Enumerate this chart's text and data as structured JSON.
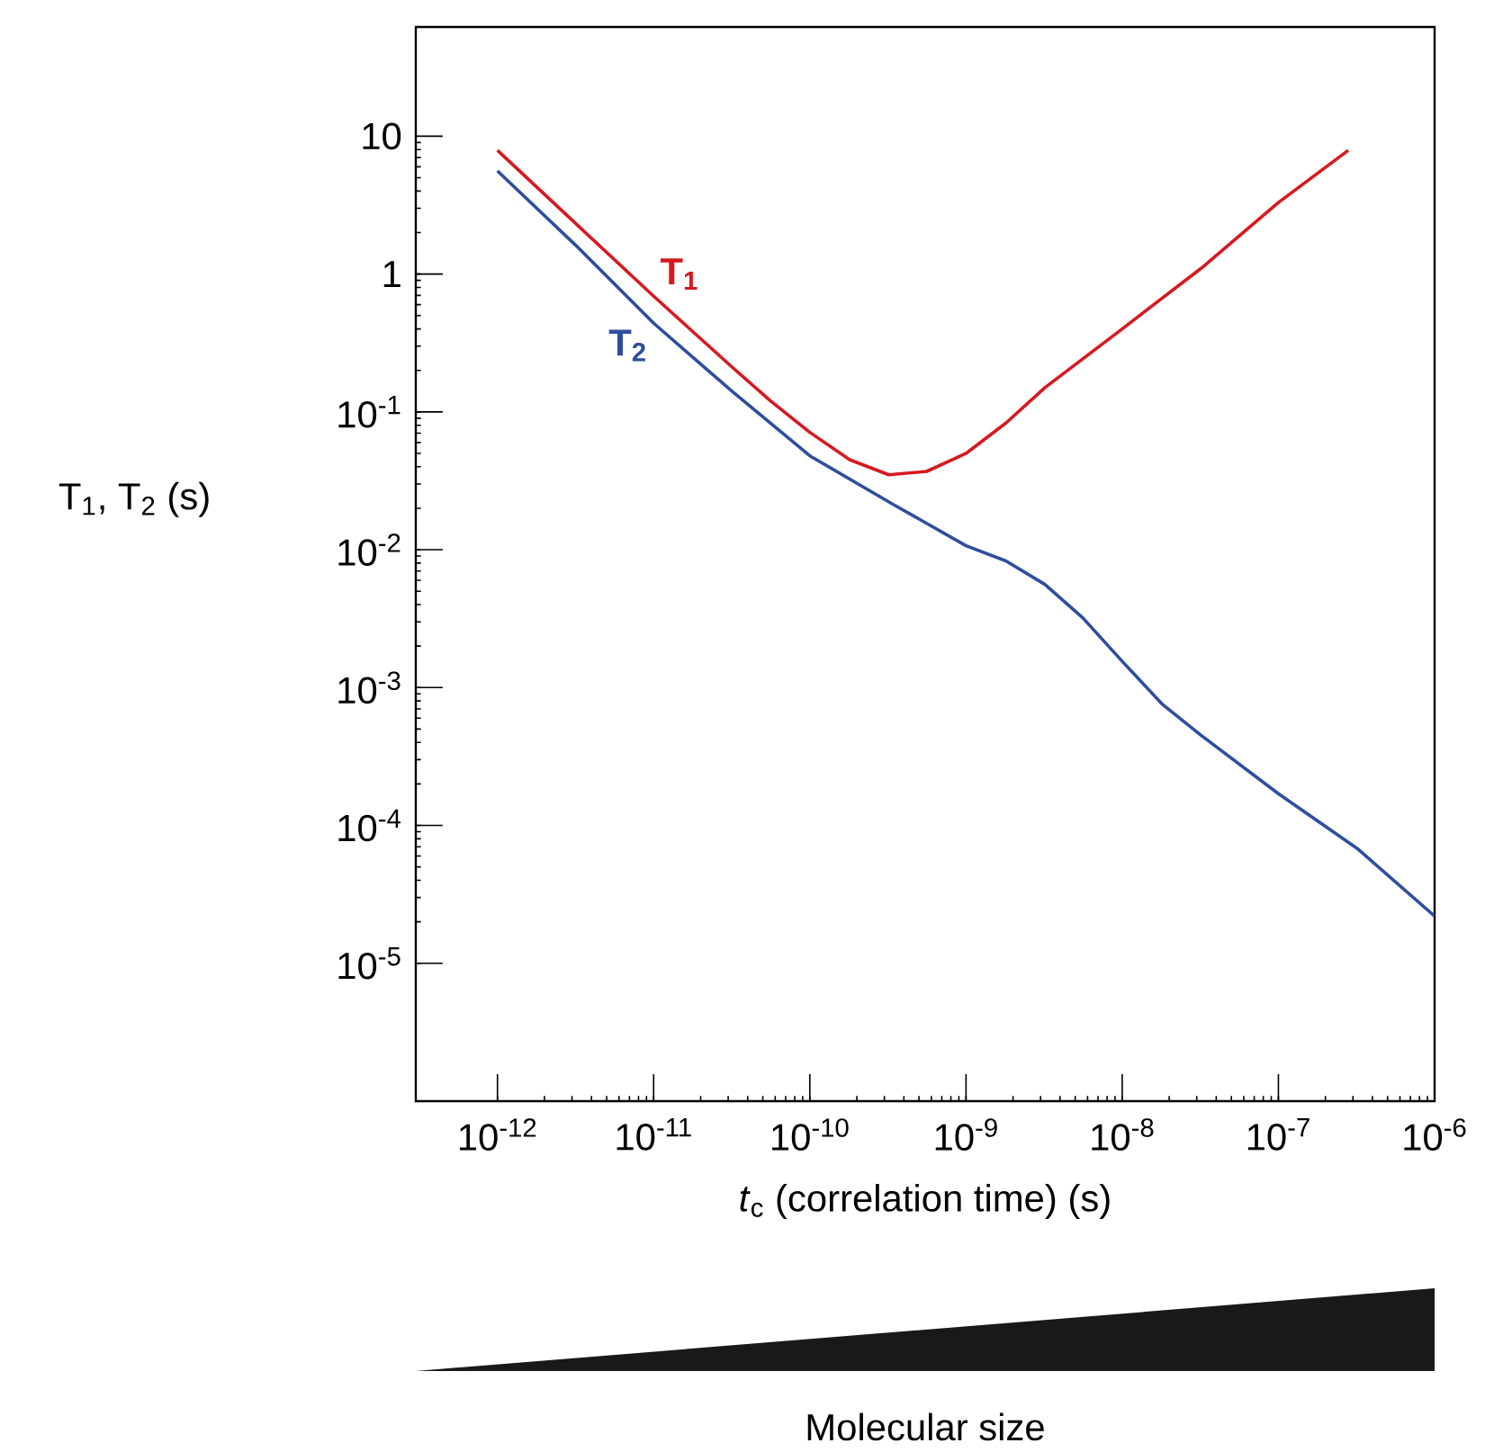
{
  "chart_data": {
    "type": "line",
    "log": "xy",
    "marker": "none",
    "line_style": "solid",
    "xlabel": "*t*$_{c}$ (correlation time) (s)",
    "ylabel": "T$_{1}$, T$_{2}$ (s)",
    "xlim": [
      3e-13,
      1e-06
    ],
    "ylim": [
      1e-06,
      62
    ],
    "xticks": [
      {
        "value": 1e-12,
        "label": "10$^{-12}$"
      },
      {
        "value": 1e-11,
        "label": "10$^{-11}$"
      },
      {
        "value": 1e-10,
        "label": "10$^{-10}$"
      },
      {
        "value": 1e-09,
        "label": "10$^{-9}$"
      },
      {
        "value": 1e-08,
        "label": "10$^{-8}$"
      },
      {
        "value": 1e-07,
        "label": "10$^{-7}$"
      },
      {
        "value": 1e-06,
        "label": "10$^{-6}$"
      }
    ],
    "yticks": [
      {
        "value": 1e-05,
        "label": "10$^{-5}$"
      },
      {
        "value": 0.0001,
        "label": "10$^{-4}$"
      },
      {
        "value": 0.001,
        "label": "10$^{-3}$"
      },
      {
        "value": 0.01,
        "label": "10$^{-2}$"
      },
      {
        "value": 0.1,
        "label": "10$^{-1}$"
      },
      1,
      10
    ],
    "annotations": [
      "Molecular size"
    ],
    "series": [
      {
        "name": "T$_{1}$",
        "color": "#d7191f",
        "x": [
          1e-12,
          3.2e-12,
          1e-11,
          3.2e-11,
          5.6e-11,
          1e-10,
          1.8e-10,
          3.2e-10,
          5.6e-10,
          1e-09,
          1.8e-09,
          3.2e-09,
          1e-08,
          3.2e-08,
          1e-07,
          2.8e-07
        ],
        "values": [
          7.9,
          2.3,
          0.69,
          0.21,
          0.12,
          0.071,
          0.045,
          0.035,
          0.037,
          0.05,
          0.083,
          0.15,
          0.4,
          1.1,
          3.3,
          7.9
        ]
      },
      {
        "name": "T$_{2}$",
        "color": "#2e4e9e",
        "x": [
          1e-12,
          3.2e-12,
          1e-11,
          3.2e-11,
          1e-10,
          3.5e-10,
          1e-09,
          1.8e-09,
          3.2e-09,
          5.6e-09,
          1e-08,
          1.8e-08,
          3.2e-08,
          1e-07,
          3.2e-07,
          1e-06
        ],
        "values": [
          5.6,
          1.6,
          0.44,
          0.14,
          0.048,
          0.021,
          0.0107,
          0.0083,
          0.0056,
          0.0032,
          0.00155,
          0.00076,
          0.00045,
          0.00017,
          6.8e-05,
          2.2e-05
        ]
      }
    ]
  }
}
